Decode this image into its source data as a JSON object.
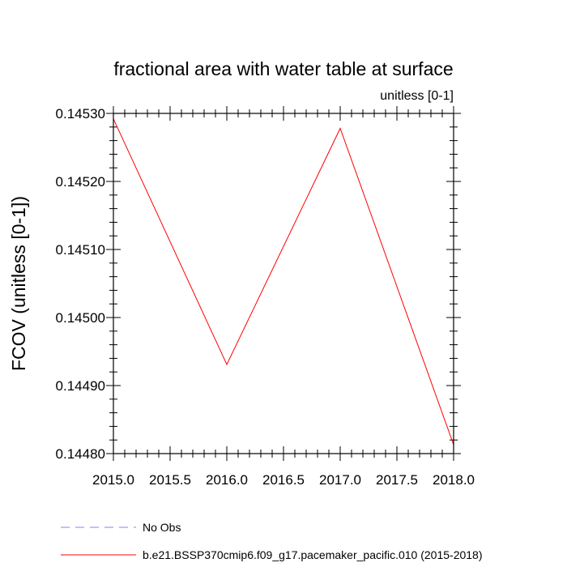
{
  "chart_data": {
    "type": "line",
    "title": "fractional area with water table at surface",
    "units_label": "unitless [0-1]",
    "ylabel": "FCOV  (unitless [0-1])",
    "xlabel": "",
    "xlim": [
      2015.0,
      2018.0
    ],
    "ylim": [
      0.1448,
      0.1453
    ],
    "x_ticks": [
      2015.0,
      2015.5,
      2016.0,
      2016.5,
      2017.0,
      2017.5,
      2018.0
    ],
    "x_tick_labels": [
      "2015.0",
      "2015.5",
      "2016.0",
      "2016.5",
      "2017.0",
      "2017.5",
      "2018.0"
    ],
    "y_ticks": [
      0.1448,
      0.1449,
      0.145,
      0.1451,
      0.1452,
      0.1453
    ],
    "y_tick_labels": [
      "0.14480",
      "0.14490",
      "0.14500",
      "0.14510",
      "0.14520",
      "0.14530"
    ],
    "grid": false,
    "legend_position": "bottom-left",
    "series": [
      {
        "name": "No Obs",
        "color": "#8080ff",
        "dashed": true,
        "x": [],
        "values": []
      },
      {
        "name": "b.e21.BSSP370cmip6.f09_g17.pacemaker_pacific.010 (2015-2018)",
        "color": "#ff0000",
        "dashed": false,
        "x": [
          2015,
          2016,
          2017,
          2018
        ],
        "values": [
          0.145292,
          0.144931,
          0.145278,
          0.144813
        ]
      }
    ]
  }
}
